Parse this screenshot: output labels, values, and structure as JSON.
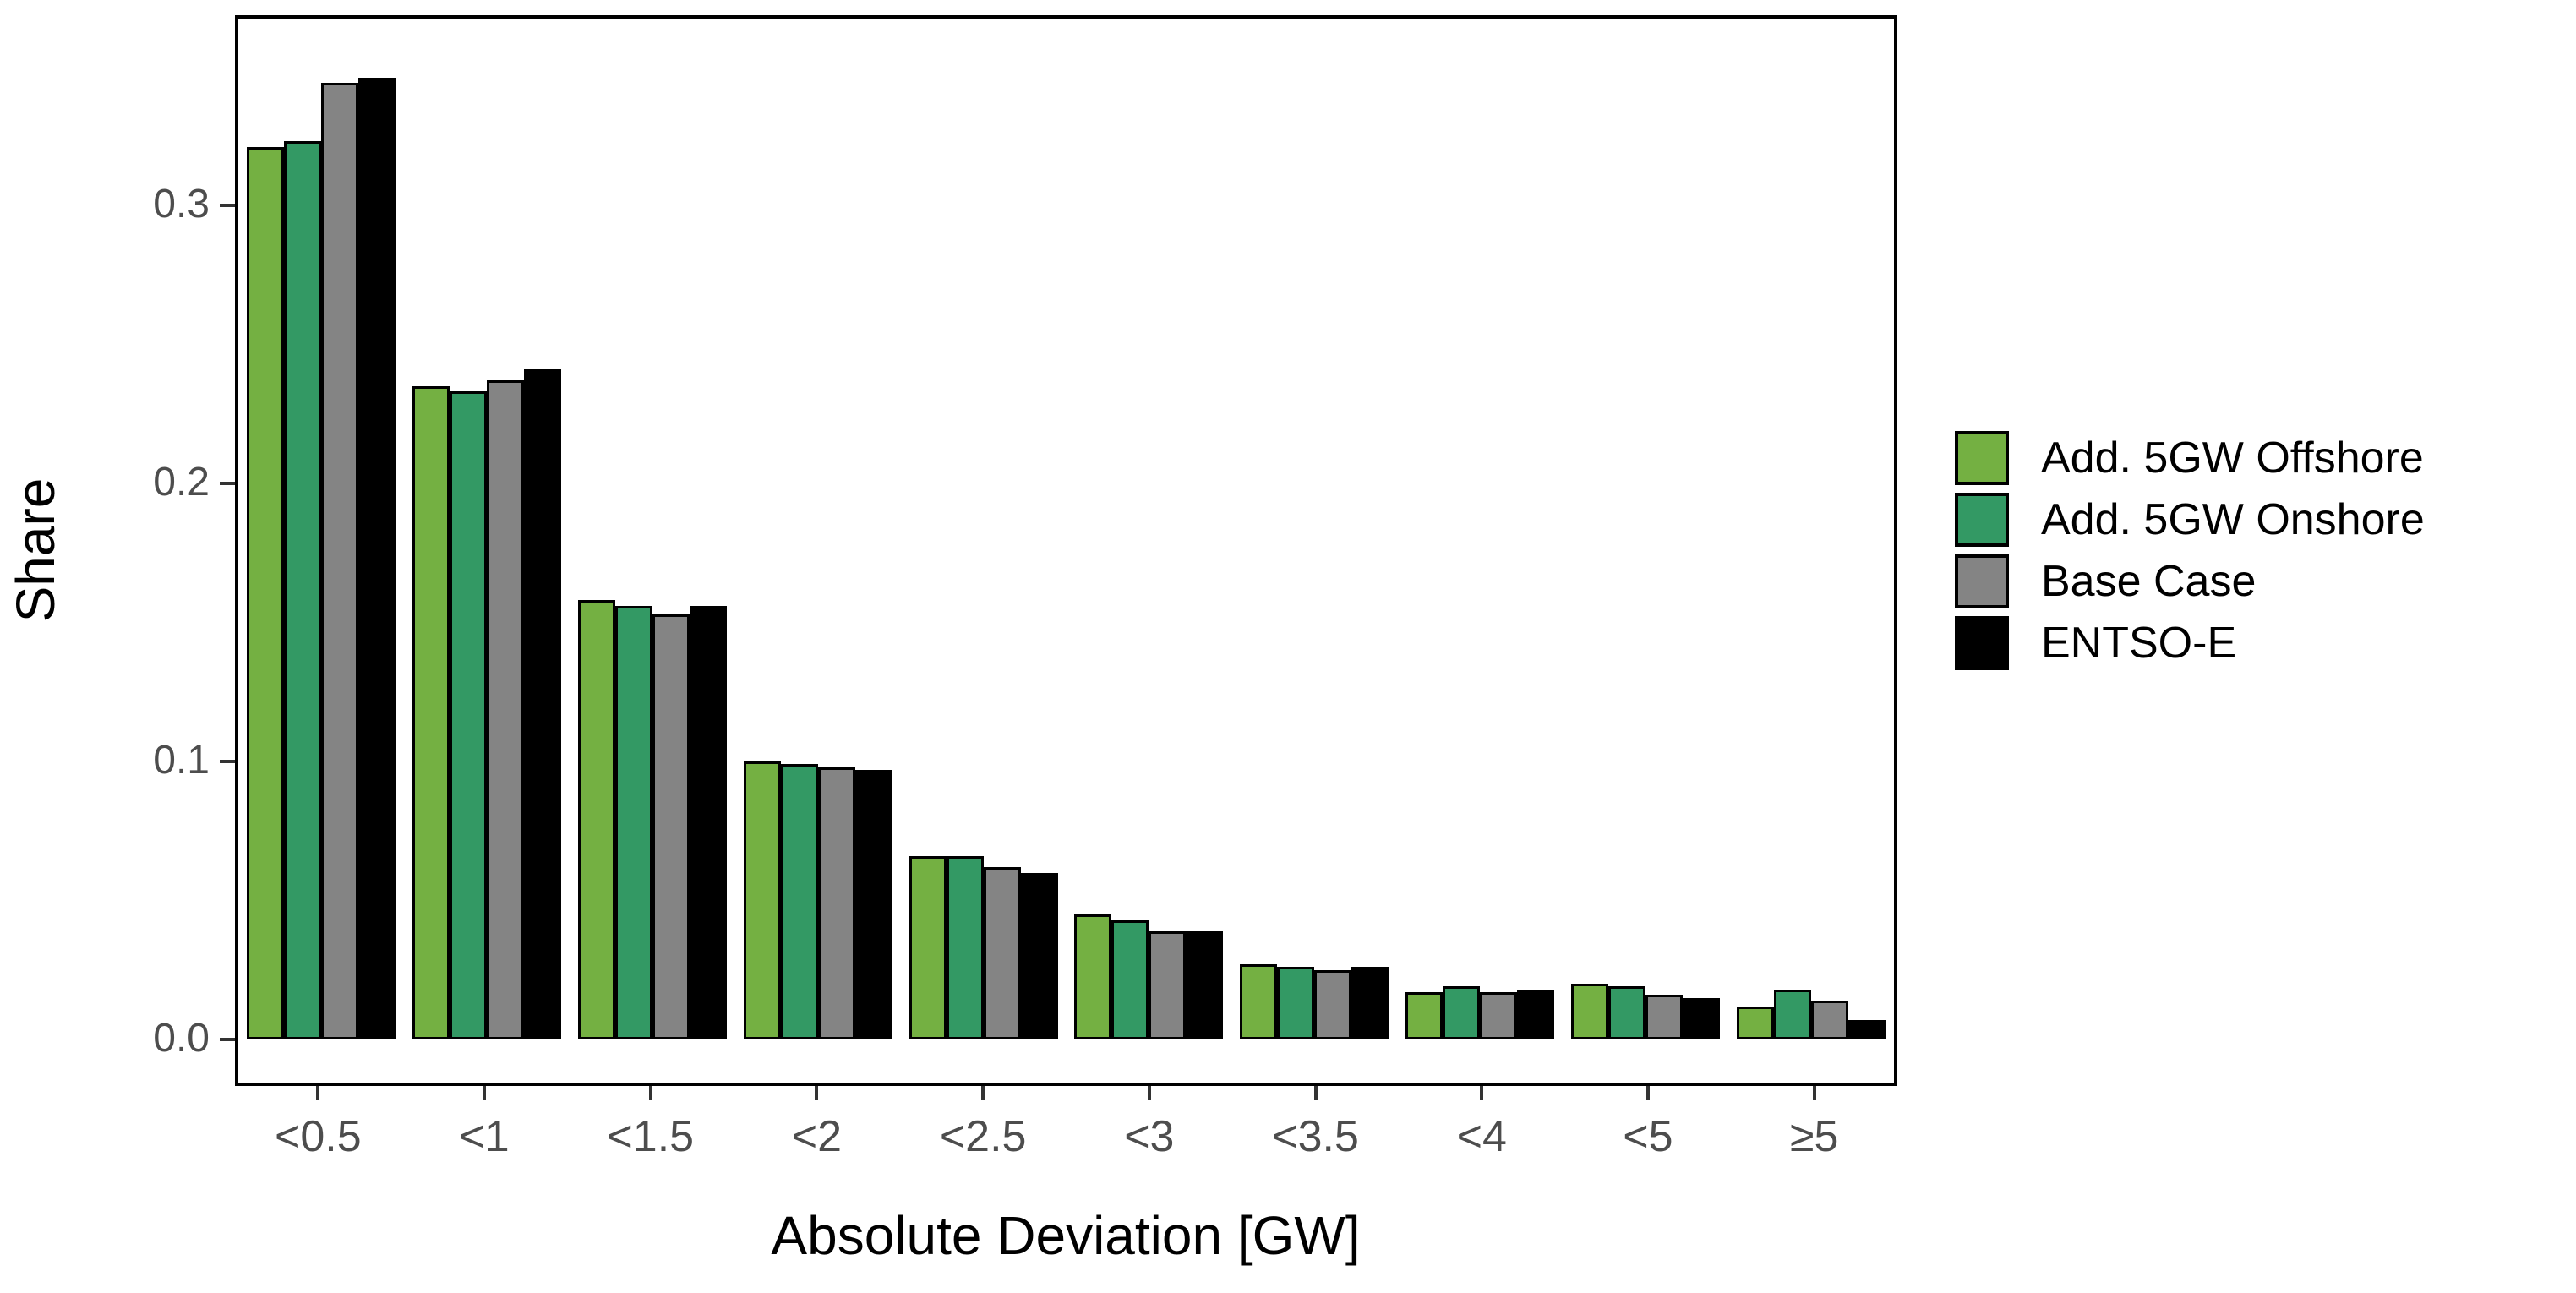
{
  "y_axis": {
    "label": "Share",
    "ticks": [
      {
        "value": 0.0,
        "label": "0.0"
      },
      {
        "value": 0.1,
        "label": "0.1"
      },
      {
        "value": 0.2,
        "label": "0.2"
      },
      {
        "value": 0.3,
        "label": "0.3"
      }
    ]
  },
  "x_axis": {
    "label": "Absolute Deviation [GW]"
  },
  "legend": {
    "position": "right",
    "items": [
      {
        "label": "Add. 5GW Offshore",
        "color": "#74B042"
      },
      {
        "label": "Add. 5GW Onshore",
        "color": "#339964"
      },
      {
        "label": "Base Case",
        "color": "#848484"
      },
      {
        "label": "ENTSO-E",
        "color": "#000000"
      }
    ]
  },
  "chart_data": {
    "type": "bar",
    "title": "",
    "xlabel": "Absolute Deviation [GW]",
    "ylabel": "Share",
    "ylim": [
      0,
      0.365
    ],
    "grid": false,
    "legend_position": "right",
    "bar_outline_color": "#000000",
    "tick_label_color": "#4d4d4d",
    "categories": [
      "<0.5",
      "<1",
      "<1.5",
      "<2",
      "<2.5",
      "<3",
      "<3.5",
      "<4",
      "<5",
      "≥5"
    ],
    "series": [
      {
        "name": "Add. 5GW Offshore",
        "color": "#74B042",
        "values": [
          0.321,
          0.235,
          0.158,
          0.1,
          0.066,
          0.045,
          0.027,
          0.017,
          0.02,
          0.012
        ]
      },
      {
        "name": "Add. 5GW Onshore",
        "color": "#339964",
        "values": [
          0.323,
          0.233,
          0.156,
          0.099,
          0.066,
          0.043,
          0.026,
          0.019,
          0.019,
          0.018
        ]
      },
      {
        "name": "Base Case",
        "color": "#848484",
        "values": [
          0.344,
          0.237,
          0.153,
          0.098,
          0.062,
          0.039,
          0.025,
          0.017,
          0.016,
          0.014
        ]
      },
      {
        "name": "ENTSO-E",
        "color": "#000000",
        "values": [
          0.346,
          0.241,
          0.156,
          0.097,
          0.06,
          0.039,
          0.026,
          0.018,
          0.015,
          0.007
        ]
      }
    ]
  }
}
